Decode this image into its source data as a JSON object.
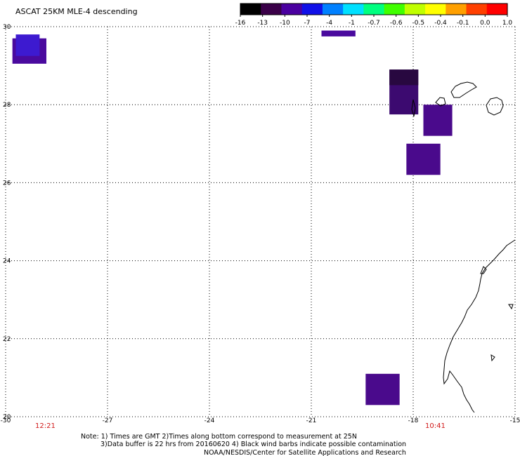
{
  "title": "ASCAT 25KM MLE-4 descending",
  "colorbar": {
    "labels": [
      "-16",
      "-13",
      "-10",
      "-7",
      "-4",
      "-1",
      "-0.7",
      "-0.6",
      "-0.5",
      "-0.4",
      "-0.1",
      "0.0",
      "1.0"
    ],
    "colors": [
      "#000000",
      "#3a0048",
      "#4a00a0",
      "#1010e8",
      "#0080ff",
      "#00e0ff",
      "#00ff80",
      "#40ff00",
      "#c0ff00",
      "#ffff00",
      "#ffa000",
      "#ff4000",
      "#ff0000"
    ]
  },
  "axes": {
    "lon_labels": [
      "-30",
      "-27",
      "-24",
      "-21",
      "-18",
      "-15"
    ],
    "lat_labels": [
      "30",
      "28",
      "26",
      "24",
      "22",
      "20"
    ]
  },
  "times": [
    "12:21",
    "10:41"
  ],
  "notes": [
    "Note: 1) Times are GMT 2)Times along bottom correspond to measurement at 25N",
    "3)Data buffer is 22 hrs from 20160620 4) Black wind barbs indicate possible contamination",
    "NOAA/NESDIS/Center for Satellite Applications and Research"
  ],
  "data_cells": [
    {
      "lon": [
        -29.8,
        -28.8
      ],
      "lat": [
        29.7,
        29.05
      ],
      "color": "#4a0a9e"
    },
    {
      "lon": [
        -29.7,
        -29.0
      ],
      "lat": [
        29.8,
        29.25
      ],
      "color": "#3d1ad0"
    },
    {
      "lon": [
        -20.7,
        -19.7
      ],
      "lat": [
        29.9,
        29.75
      ],
      "color": "#4a0a9e"
    },
    {
      "lon": [
        -18.7,
        -17.85
      ],
      "lat": [
        28.9,
        27.75
      ],
      "color": "#3c0a70"
    },
    {
      "lon": [
        -18.7,
        -17.85
      ],
      "lat": [
        28.9,
        28.5
      ],
      "color": "#280840"
    },
    {
      "lon": [
        -17.7,
        -16.85
      ],
      "lat": [
        28.0,
        27.2
      ],
      "color": "#4a0a8c"
    },
    {
      "lon": [
        -18.2,
        -17.2
      ],
      "lat": [
        27.0,
        26.2
      ],
      "color": "#4a0a8c"
    },
    {
      "lon": [
        -19.4,
        -18.4
      ],
      "lat": [
        21.1,
        20.3
      ],
      "color": "#4a0a8c"
    }
  ]
}
